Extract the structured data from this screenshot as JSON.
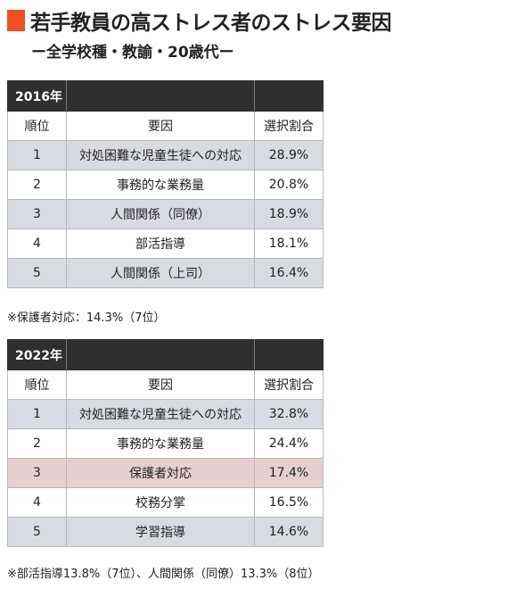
{
  "title": "若手教員の高ストレス者のストレス要因",
  "subtitle": "ー全学校種・教諭・20歳代ー",
  "colors": {
    "accent": "#f0501e",
    "year_header_bg": "#2f2f2f",
    "shaded_row": "#d8dbe2",
    "highlight_row": "#e5cfd1"
  },
  "tables": [
    {
      "year": "2016年",
      "headers": {
        "rank": "順位",
        "factor": "要因",
        "ratio": "選択割合"
      },
      "rows": [
        {
          "rank": "1",
          "factor": "対処困難な児童生徒への対応",
          "ratio": "28.9%"
        },
        {
          "rank": "2",
          "factor": "事務的な業務量",
          "ratio": "20.8%"
        },
        {
          "rank": "3",
          "factor": "人間関係（同僚）",
          "ratio": "18.9%"
        },
        {
          "rank": "4",
          "factor": "部活指導",
          "ratio": "18.1%"
        },
        {
          "rank": "5",
          "factor": "人間関係（上司）",
          "ratio": "16.4%"
        }
      ],
      "note": "※保護者対応：14.3%（7位）"
    },
    {
      "year": "2022年",
      "headers": {
        "rank": "順位",
        "factor": "要因",
        "ratio": "選択割合"
      },
      "rows": [
        {
          "rank": "1",
          "factor": "対処困難な児童生徒への対応",
          "ratio": "32.8%"
        },
        {
          "rank": "2",
          "factor": "事務的な業務量",
          "ratio": "24.4%"
        },
        {
          "rank": "3",
          "factor": "保護者対応",
          "ratio": "17.4%"
        },
        {
          "rank": "4",
          "factor": "校務分掌",
          "ratio": "16.5%"
        },
        {
          "rank": "5",
          "factor": "学習指導",
          "ratio": "14.6%"
        }
      ],
      "note": "※部活指導13.8%（7位）、人間関係（同僚）13.3%（8位）"
    }
  ]
}
